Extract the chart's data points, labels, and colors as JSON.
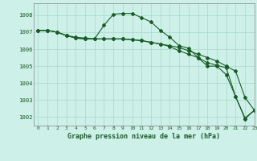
{
  "bg_color": "#cdf0e8",
  "grid_color": "#aad8c8",
  "line_color": "#1a5c28",
  "xlabel": "Graphe pression niveau de la mer (hPa)",
  "ylim": [
    1001.5,
    1008.7
  ],
  "xlim": [
    -0.5,
    23
  ],
  "yticks": [
    1002,
    1003,
    1004,
    1005,
    1006,
    1007,
    1008
  ],
  "xticks": [
    0,
    1,
    2,
    3,
    4,
    5,
    6,
    7,
    8,
    9,
    10,
    11,
    12,
    13,
    14,
    15,
    16,
    17,
    18,
    19,
    20,
    21,
    22,
    23
  ],
  "series1_x": [
    0,
    1,
    2,
    3,
    4,
    5,
    6,
    7,
    8,
    9,
    10,
    11,
    12,
    13,
    14,
    15,
    16,
    17,
    18,
    19,
    20,
    21,
    22,
    23
  ],
  "series1_y": [
    1007.1,
    1007.1,
    1007.0,
    1006.8,
    1006.7,
    1006.65,
    1006.6,
    1007.4,
    1008.05,
    1008.1,
    1008.1,
    1007.85,
    1007.6,
    1007.1,
    1006.7,
    1006.2,
    1006.05,
    1005.5,
    1005.0,
    1005.0,
    1004.5,
    1003.2,
    1001.9,
    1002.4
  ],
  "series2_x": [
    0,
    1,
    2,
    3,
    4,
    5,
    6,
    7,
    8,
    9,
    10,
    11,
    12,
    13,
    14,
    15,
    16,
    17,
    18,
    19,
    20,
    21,
    22,
    23
  ],
  "series2_y": [
    1007.1,
    1007.1,
    1007.0,
    1006.8,
    1006.65,
    1006.6,
    1006.6,
    1006.6,
    1006.6,
    1006.6,
    1006.55,
    1006.5,
    1006.4,
    1006.3,
    1006.2,
    1006.1,
    1005.9,
    1005.7,
    1005.5,
    1005.3,
    1005.0,
    1004.7,
    1003.15,
    1002.4
  ],
  "series3_x": [
    0,
    1,
    2,
    3,
    4,
    5,
    6,
    7,
    8,
    9,
    10,
    11,
    12,
    13,
    14,
    15,
    16,
    17,
    18,
    19,
    20,
    21,
    22,
    23
  ],
  "series3_y": [
    1007.1,
    1007.1,
    1007.0,
    1006.8,
    1006.65,
    1006.6,
    1006.6,
    1006.6,
    1006.6,
    1006.6,
    1006.55,
    1006.5,
    1006.4,
    1006.3,
    1006.15,
    1005.9,
    1005.7,
    1005.5,
    1005.2,
    1005.05,
    1004.9,
    1003.2,
    1001.95,
    1002.4
  ]
}
